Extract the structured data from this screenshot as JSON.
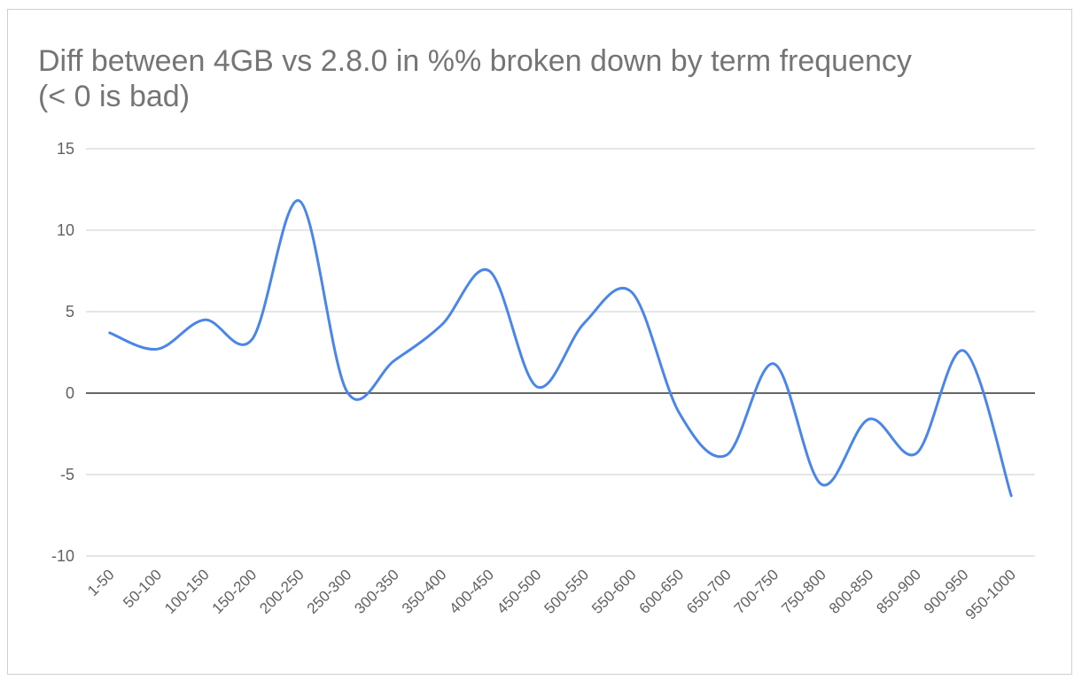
{
  "chart_data": {
    "type": "line",
    "title": "Diff between 4GB vs 2.8.0 in %% broken down by term frequency (< 0 is bad)",
    "xlabel": "",
    "ylabel": "",
    "categories": [
      "1-50",
      "50-100",
      "100-150",
      "150-200",
      "200-250",
      "250-300",
      "300-350",
      "350-400",
      "400-450",
      "450-500",
      "500-550",
      "550-600",
      "600-650",
      "650-700",
      "700-750",
      "750-800",
      "800-850",
      "850-900",
      "900-950",
      "950-1000"
    ],
    "series": [
      {
        "values": [
          3.7,
          2.7,
          4.5,
          3.3,
          11.8,
          0.1,
          2.0,
          4.2,
          7.5,
          0.4,
          4.3,
          6.2,
          -1.2,
          -3.8,
          1.8,
          -5.6,
          -1.6,
          -3.7,
          2.6,
          -6.3
        ]
      }
    ],
    "ylim": [
      -10,
      15
    ],
    "yticks": [
      15,
      10,
      5,
      0,
      -5,
      -10
    ],
    "grid": true,
    "legend": "none",
    "colors": {
      "line": "#4a86e8",
      "grid": "#cccccc",
      "zero_line": "#333333",
      "title": "#757575",
      "tick_label": "#616161"
    }
  }
}
